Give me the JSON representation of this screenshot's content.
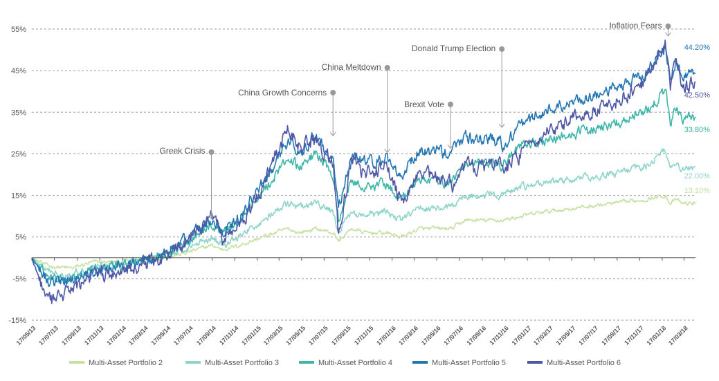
{
  "chart_data": {
    "type": "line",
    "title": "",
    "xlabel": "",
    "ylabel": "",
    "ylim": [
      -15,
      55
    ],
    "y_ticks": [
      55,
      45,
      35,
      25,
      15,
      5,
      -5,
      -15
    ],
    "y_tick_labels": [
      "55%",
      "45%",
      "35%",
      "25%",
      "15%",
      "5%",
      "-5%",
      "-15%"
    ],
    "x_ticks": [
      "17/05/13",
      "17/07/13",
      "17/09/13",
      "17/11/13",
      "17/01/14",
      "17/03/14",
      "17/05/14",
      "17/07/14",
      "17/09/14",
      "17/11/14",
      "17/01/15",
      "17/03/15",
      "17/05/15",
      "17/07/15",
      "17/09/15",
      "17/11/15",
      "17/01/16",
      "17/03/16",
      "17/05/16",
      "17/07/16",
      "17/09/16",
      "17/11/16",
      "17/01/17",
      "17/03/17",
      "17/05/17",
      "17/07/17",
      "17/09/17",
      "17/11/17",
      "17/01/18",
      "17/03/18"
    ],
    "x_range": [
      "2013-05-17",
      "2018-04-17"
    ],
    "grid": "horizontal dashed",
    "legend_position": "bottom",
    "anchors": [
      "2013-05-17",
      "2013-07-01",
      "2013-09-01",
      "2013-11-01",
      "2014-01-01",
      "2014-03-01",
      "2014-05-01",
      "2014-07-01",
      "2014-09-15",
      "2014-10-15",
      "2014-12-01",
      "2015-02-01",
      "2015-04-10",
      "2015-05-10",
      "2015-06-25",
      "2015-08-10",
      "2015-08-25",
      "2015-09-29",
      "2015-11-05",
      "2016-01-01",
      "2016-02-11",
      "2016-04-01",
      "2016-06-23",
      "2016-06-27",
      "2016-08-01",
      "2016-11-04",
      "2016-11-10",
      "2017-01-01",
      "2017-03-01",
      "2017-06-01",
      "2017-09-01",
      "2017-12-01",
      "2018-01-26",
      "2018-02-08",
      "2018-02-23",
      "2018-03-15",
      "2018-04-17"
    ],
    "series": [
      {
        "name": "Multi-Asset Portfolio 2",
        "color": "#c7e0a4",
        "values": [
          0,
          -2,
          -2.5,
          -1,
          -1,
          -0.5,
          0,
          1,
          3,
          2,
          3,
          5,
          7,
          6,
          7,
          6,
          4,
          7,
          6,
          6,
          5,
          7,
          7,
          7,
          9,
          9,
          9,
          10,
          11,
          12,
          13,
          14,
          15,
          13,
          14,
          13,
          13.1
        ]
      },
      {
        "name": "Multi-Asset Portfolio 3",
        "color": "#8fd4ca",
        "values": [
          0,
          -3.5,
          -4,
          -2,
          -1.5,
          -1,
          0,
          2,
          5,
          3,
          5,
          9,
          13,
          12,
          13,
          11,
          6,
          11,
          10,
          11,
          9,
          12,
          12,
          12,
          15,
          15,
          15,
          17,
          18,
          19,
          20,
          22,
          26,
          21,
          23,
          21,
          22
        ]
      },
      {
        "name": "Multi-Asset Portfolio 4",
        "color": "#3cb6a8",
        "values": [
          0,
          -5,
          -5.5,
          -3,
          -2,
          -1,
          0,
          3,
          8,
          6,
          9,
          16,
          24,
          22,
          25,
          20,
          9,
          19,
          17,
          18,
          14,
          19,
          18,
          18,
          23,
          22,
          22,
          27,
          28,
          30,
          32,
          35,
          40,
          32,
          36,
          33,
          33.8
        ]
      },
      {
        "name": "Multi-Asset Portfolio 5",
        "color": "#2476b3",
        "values": [
          0,
          -5.5,
          -5.5,
          -3,
          -2,
          -1,
          0,
          4,
          9,
          6,
          10,
          18,
          28,
          26,
          29,
          24,
          12,
          24,
          23,
          24,
          20,
          26,
          25,
          26,
          29,
          28,
          27,
          32,
          35,
          38,
          40,
          44,
          51,
          42,
          48,
          43,
          44.2
        ]
      },
      {
        "name": "Multi-Asset Portfolio 6",
        "color": "#4e57a6",
        "values": [
          0,
          -11,
          -8,
          -4,
          -4,
          -2,
          0,
          3,
          10,
          5,
          8,
          17,
          31,
          27,
          28,
          23,
          5,
          24,
          20,
          22,
          13,
          21,
          18,
          15,
          22,
          22,
          21,
          25,
          30,
          34,
          37,
          42,
          52,
          41,
          48,
          40,
          42.5
        ]
      }
    ],
    "end_labels": [
      {
        "series": 4,
        "text": "44.20%"
      },
      {
        "series": 5,
        "text": "42.50%"
      },
      {
        "series": 3,
        "text": "33.80%"
      },
      {
        "series": 2,
        "text": "22.00%"
      },
      {
        "series": 1,
        "text": "13.10%"
      }
    ],
    "annotations": [
      {
        "text": "Greek Crisis",
        "date": "2014-09-15",
        "value": 9
      },
      {
        "text": "China Growth Concerns",
        "date": "2015-08-10",
        "value": 29
      },
      {
        "text": "China Meltdown",
        "date": "2016-01-04",
        "value": 25
      },
      {
        "text": "Brexit Vote",
        "date": "2016-06-23",
        "value": 26
      },
      {
        "text": "Donald Trump Election",
        "date": "2016-11-09",
        "value": 31
      },
      {
        "text": "Inflation Fears",
        "date": "2018-02-02",
        "value": 53
      }
    ]
  }
}
